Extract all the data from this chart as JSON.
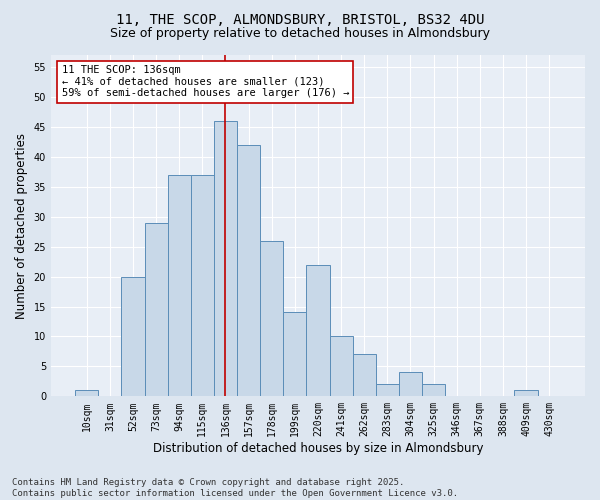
{
  "title1": "11, THE SCOP, ALMONDSBURY, BRISTOL, BS32 4DU",
  "title2": "Size of property relative to detached houses in Almondsbury",
  "xlabel": "Distribution of detached houses by size in Almondsbury",
  "ylabel": "Number of detached properties",
  "categories": [
    "10sqm",
    "31sqm",
    "52sqm",
    "73sqm",
    "94sqm",
    "115sqm",
    "136sqm",
    "157sqm",
    "178sqm",
    "199sqm",
    "220sqm",
    "241sqm",
    "262sqm",
    "283sqm",
    "304sqm",
    "325sqm",
    "346sqm",
    "367sqm",
    "388sqm",
    "409sqm",
    "430sqm"
  ],
  "values": [
    1,
    0,
    20,
    29,
    37,
    37,
    46,
    42,
    26,
    14,
    22,
    10,
    7,
    2,
    4,
    2,
    0,
    0,
    0,
    1,
    0
  ],
  "bar_color": "#c8d8e8",
  "bar_edge_color": "#5b8db8",
  "reference_line_index": 6,
  "reference_line_color": "#c00000",
  "annotation_text": "11 THE SCOP: 136sqm\n← 41% of detached houses are smaller (123)\n59% of semi-detached houses are larger (176) →",
  "annotation_box_color": "#ffffff",
  "annotation_box_edge_color": "#c00000",
  "ylim": [
    0,
    57
  ],
  "yticks": [
    0,
    5,
    10,
    15,
    20,
    25,
    30,
    35,
    40,
    45,
    50,
    55
  ],
  "footer_text": "Contains HM Land Registry data © Crown copyright and database right 2025.\nContains public sector information licensed under the Open Government Licence v3.0.",
  "background_color": "#dde6f0",
  "plot_background_color": "#e8eef6",
  "grid_color": "#ffffff",
  "title_fontsize": 10,
  "subtitle_fontsize": 9,
  "tick_fontsize": 7,
  "label_fontsize": 8.5,
  "footer_fontsize": 6.5,
  "annotation_fontsize": 7.5
}
